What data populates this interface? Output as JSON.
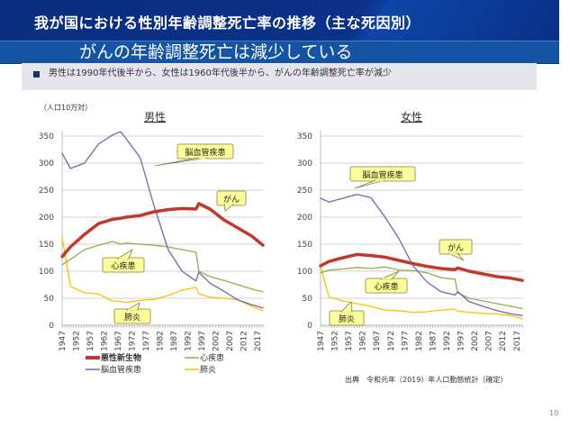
{
  "header": {
    "title": "我が国における性別年齢調整死亡率の推移（主な死因別）",
    "subtitle": "がんの年齢調整死亡は減少している"
  },
  "summary": {
    "text": "男性は1990年代後半から、女性は1960年代後半から、がんの年齢調整死亡率が減少"
  },
  "source": "出典　令和元年（2019）年人口動態統計（確定）",
  "page_number": "10",
  "colors": {
    "cancer": "#c0392b",
    "heart": "#8db04f",
    "cerebrovascular": "#7b5fb0",
    "pneumonia": "#ffc000",
    "callout_fill": "#ffff99",
    "grid": "#d9d9d9"
  },
  "chart_data": [
    {
      "type": "line",
      "title": "男性",
      "ylabel": "（人口10万対）",
      "xlabel": "",
      "ylim": [
        0,
        350
      ],
      "yticks": [
        0,
        50,
        100,
        150,
        200,
        250,
        300,
        350
      ],
      "xticks": [
        "1947",
        "1952",
        "1957",
        "1962",
        "1967",
        "1972",
        "1977",
        "1982",
        "1987",
        "1992",
        "1997",
        "2002",
        "2007",
        "2012",
        "2017"
      ],
      "x": [
        1947,
        1950,
        1955,
        1960,
        1965,
        1968,
        1970,
        1975,
        1980,
        1985,
        1990,
        1995,
        1996,
        2000,
        2005,
        2010,
        2015,
        2019
      ],
      "series": [
        {
          "name": "悪性新生物",
          "key": "cancer",
          "values": [
            127,
            145,
            168,
            188,
            196,
            198,
            200,
            203,
            210,
            214,
            216,
            215,
            225,
            215,
            195,
            180,
            165,
            148
          ]
        },
        {
          "name": "心疾患",
          "key": "heart",
          "values": [
            112,
            122,
            140,
            148,
            155,
            150,
            152,
            150,
            148,
            145,
            140,
            135,
            100,
            90,
            83,
            75,
            67,
            62
          ]
        },
        {
          "name": "脳血管疾患",
          "key": "cerebrovascular",
          "values": [
            318,
            290,
            300,
            335,
            352,
            358,
            345,
            310,
            220,
            140,
            100,
            82,
            98,
            78,
            63,
            47,
            38,
            32
          ]
        },
        {
          "name": "肺炎",
          "key": "pneumonia",
          "values": [
            163,
            72,
            60,
            58,
            45,
            44,
            42,
            46,
            48,
            55,
            65,
            70,
            58,
            52,
            50,
            47,
            35,
            27
          ]
        }
      ],
      "callouts": [
        {
          "label": "脳血管疾患",
          "series": "脳血管疾患"
        },
        {
          "label": "がん",
          "series": "悪性新生物"
        },
        {
          "label": "心疾患",
          "series": "心疾患"
        },
        {
          "label": "肺炎",
          "series": "肺炎"
        }
      ],
      "legend": [
        {
          "label": "悪性新生物",
          "key": "cancer"
        },
        {
          "label": "心疾患",
          "key": "heart"
        },
        {
          "label": "脳血管疾患",
          "key": "cerebrovascular"
        },
        {
          "label": "肺炎",
          "key": "pneumonia"
        }
      ],
      "grid": true
    },
    {
      "type": "line",
      "title": "女性",
      "ylabel": "",
      "xlabel": "",
      "ylim": [
        0,
        350
      ],
      "yticks": [
        0,
        50,
        100,
        150,
        200,
        250,
        300,
        350
      ],
      "xticks": [
        "1947",
        "1952",
        "1957",
        "1962",
        "1967",
        "1972",
        "1977",
        "1982",
        "1987",
        "1992",
        "1997",
        "2002",
        "2007",
        "2012",
        "2017"
      ],
      "x": [
        1947,
        1950,
        1955,
        1960,
        1965,
        1970,
        1975,
        1980,
        1985,
        1990,
        1995,
        1996,
        2000,
        2005,
        2010,
        2015,
        2019
      ],
      "series": [
        {
          "name": "悪性新生物",
          "key": "cancer",
          "values": [
            110,
            118,
            125,
            131,
            129,
            126,
            120,
            114,
            109,
            105,
            103,
            106,
            100,
            95,
            90,
            87,
            83
          ]
        },
        {
          "name": "心疾患",
          "key": "heart",
          "values": [
            97,
            102,
            104,
            107,
            105,
            108,
            102,
            101,
            97,
            88,
            85,
            60,
            50,
            45,
            40,
            35,
            31
          ]
        },
        {
          "name": "脳血管疾患",
          "key": "cerebrovascular",
          "values": [
            235,
            228,
            235,
            242,
            236,
            200,
            160,
            110,
            80,
            62,
            56,
            62,
            44,
            35,
            27,
            21,
            18
          ]
        },
        {
          "name": "肺炎",
          "key": "pneumonia",
          "values": [
            110,
            52,
            45,
            40,
            35,
            28,
            27,
            24,
            25,
            28,
            30,
            26,
            24,
            22,
            21,
            18,
            12
          ]
        }
      ],
      "callouts": [
        {
          "label": "脳血管疾患",
          "series": "脳血管疾患"
        },
        {
          "label": "がん",
          "series": "悪性新生物"
        },
        {
          "label": "心疾患",
          "series": "心疾患"
        },
        {
          "label": "肺炎",
          "series": "肺炎"
        }
      ],
      "grid": true
    }
  ]
}
